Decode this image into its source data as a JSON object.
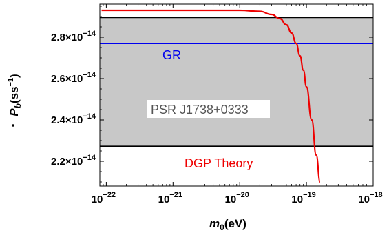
{
  "chart_data": {
    "type": "line",
    "xlabel": {
      "base": "m",
      "sub": "0",
      "rest": "(eV)"
    },
    "ylabel": {
      "base": "P",
      "sub": "b",
      "rest": "(ss",
      "sup": "−1",
      "close": ")"
    },
    "x_scale": "log",
    "xlim": [
      8e-23,
      1e-18
    ],
    "ylim": [
      2.08e-14,
      2.96e-14
    ],
    "x_ticks": [
      {
        "value": 1e-22,
        "base": "10",
        "exp": "−22"
      },
      {
        "value": 1e-21,
        "base": "10",
        "exp": "−21"
      },
      {
        "value": 1e-20,
        "base": "10",
        "exp": "−20"
      },
      {
        "value": 1e-19,
        "base": "10",
        "exp": "−19"
      },
      {
        "value": 1e-18,
        "base": "10",
        "exp": "−18"
      }
    ],
    "y_ticks": [
      {
        "value": 2.2e-14,
        "mant": "2.2",
        "base": "×10",
        "exp": "−14"
      },
      {
        "value": 2.4e-14,
        "mant": "2.4",
        "base": "×10",
        "exp": "−14"
      },
      {
        "value": 2.6e-14,
        "mant": "2.6",
        "base": "×10",
        "exp": "−14"
      },
      {
        "value": 2.8e-14,
        "mant": "2.8",
        "base": "×10",
        "exp": "−14"
      }
    ],
    "band": {
      "lower": 2.272e-14,
      "upper": 2.896e-14,
      "color": "#c8c8c8",
      "edge_color": "#000000"
    },
    "gr": {
      "value": 2.77e-14,
      "color": "#0000ee"
    },
    "series": [
      {
        "color": "#ee0000",
        "x": [
          8.5e-23,
          1e-22,
          1e-21,
          1e-20,
          2e-20,
          3e-20,
          4e-20,
          5e-20,
          6e-20,
          7e-20,
          8e-20,
          9e-20,
          1e-19,
          1.2e-19,
          1.4e-19,
          1.6e-19
        ],
        "y": [
          2.93e-14,
          2.93e-14,
          2.93e-14,
          2.93e-14,
          2.925e-14,
          2.91e-14,
          2.89e-14,
          2.86e-14,
          2.82e-14,
          2.77e-14,
          2.71e-14,
          2.64e-14,
          2.56e-14,
          2.4e-14,
          2.23e-14,
          2.1e-14
        ]
      }
    ],
    "annotations": {
      "gr_label": "GR",
      "psr_label": "PSR J1738+0333",
      "dgp_label": "DGP Theory"
    },
    "annotation_colors": {
      "gr": "#0000ee",
      "psr": "#555555",
      "dgp": "#ee0000"
    }
  }
}
